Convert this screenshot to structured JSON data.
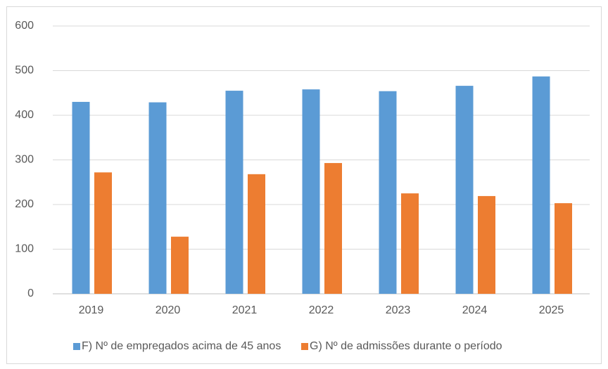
{
  "chart_data": {
    "type": "bar",
    "categories": [
      "2019",
      "2020",
      "2021",
      "2022",
      "2023",
      "2024",
      "2025"
    ],
    "series": [
      {
        "name": "F) Nº de empregados acima de 45 anos",
        "color": "#5b9bd5",
        "values": [
          430,
          429,
          455,
          458,
          454,
          466,
          487
        ]
      },
      {
        "name": "G) Nº de admissões durante o período",
        "color": "#ed7d31",
        "values": [
          272,
          128,
          268,
          293,
          225,
          219,
          203
        ]
      }
    ],
    "ylim": [
      0,
      600
    ],
    "yticks": [
      0,
      100,
      200,
      300,
      400,
      500,
      600
    ],
    "grid": true,
    "legend": "bottom"
  }
}
